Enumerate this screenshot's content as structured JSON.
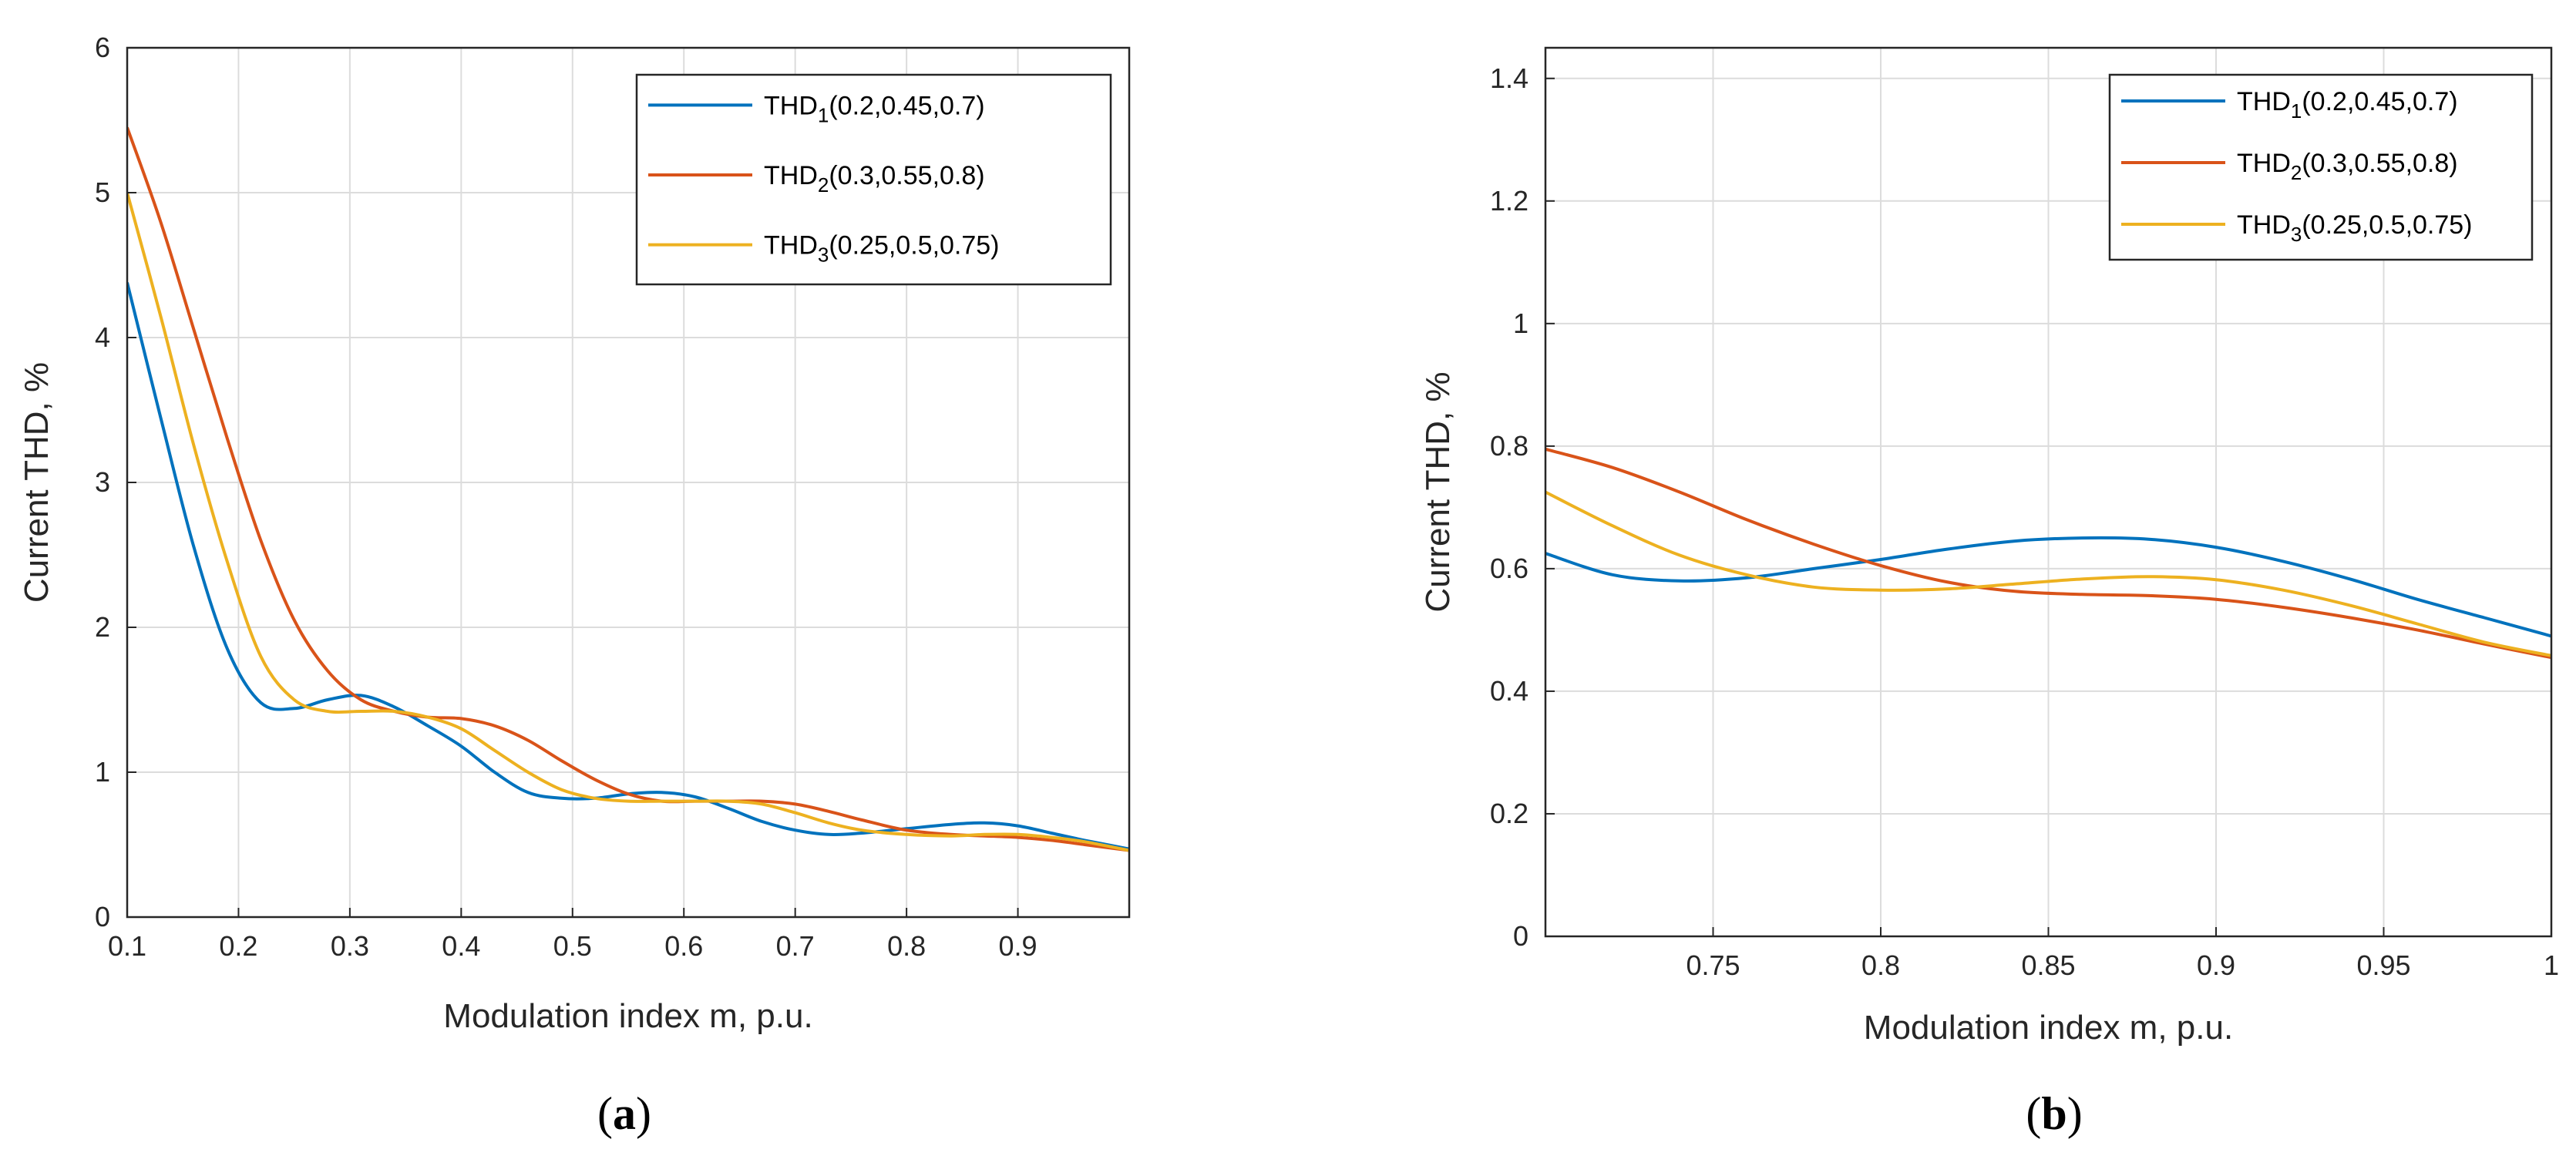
{
  "chart_data": [
    {
      "type": "line",
      "panel": "a",
      "caption": {
        "open": "(",
        "letter": "a",
        "close": ")"
      },
      "xlabel": "Modulation index m, p.u.",
      "ylabel": "Current THD, %",
      "xlim": [
        0.1,
        1.0
      ],
      "ylim": [
        0,
        6
      ],
      "xticks": [
        0.1,
        0.2,
        0.3,
        0.4,
        0.5,
        0.6,
        0.7,
        0.8,
        0.9
      ],
      "xtick_labels": [
        "0.1",
        "0.2",
        "0.3",
        "0.4",
        "0.5",
        "0.6",
        "0.7",
        "0.8",
        "0.9"
      ],
      "yticks": [
        0,
        1,
        2,
        3,
        4,
        5,
        6
      ],
      "ytick_labels": [
        "0",
        "1",
        "2",
        "3",
        "4",
        "5",
        "6"
      ],
      "grid": true,
      "legend_position": "top-right",
      "series": [
        {
          "name": "THD",
          "subscript": "1",
          "params": "(0.2,0.45,0.7)",
          "color": "#0072BD",
          "x": [
            0.1,
            0.13,
            0.16,
            0.19,
            0.22,
            0.25,
            0.28,
            0.31,
            0.34,
            0.37,
            0.4,
            0.43,
            0.46,
            0.49,
            0.52,
            0.55,
            0.58,
            0.61,
            0.64,
            0.67,
            0.7,
            0.73,
            0.76,
            0.8,
            0.84,
            0.87,
            0.9,
            0.93,
            0.96,
            1.0
          ],
          "y": [
            4.38,
            3.45,
            2.55,
            1.85,
            1.48,
            1.44,
            1.5,
            1.53,
            1.45,
            1.32,
            1.18,
            1.0,
            0.86,
            0.82,
            0.82,
            0.85,
            0.86,
            0.83,
            0.75,
            0.66,
            0.6,
            0.57,
            0.58,
            0.61,
            0.64,
            0.65,
            0.63,
            0.58,
            0.53,
            0.47
          ]
        },
        {
          "name": "THD",
          "subscript": "2",
          "params": "(0.3,0.55,0.8)",
          "color": "#D95319",
          "x": [
            0.1,
            0.13,
            0.16,
            0.19,
            0.22,
            0.25,
            0.28,
            0.31,
            0.34,
            0.37,
            0.4,
            0.43,
            0.46,
            0.49,
            0.52,
            0.55,
            0.58,
            0.61,
            0.64,
            0.67,
            0.7,
            0.73,
            0.76,
            0.8,
            0.84,
            0.87,
            0.9,
            0.93,
            0.96,
            1.0
          ],
          "y": [
            5.45,
            4.8,
            4.05,
            3.3,
            2.6,
            2.05,
            1.7,
            1.5,
            1.42,
            1.38,
            1.37,
            1.32,
            1.22,
            1.08,
            0.95,
            0.85,
            0.8,
            0.8,
            0.8,
            0.8,
            0.78,
            0.73,
            0.67,
            0.6,
            0.57,
            0.56,
            0.55,
            0.53,
            0.5,
            0.46
          ]
        },
        {
          "name": "THD",
          "subscript": "3",
          "params": "(0.25,0.5,0.75)",
          "color": "#EDB120",
          "x": [
            0.1,
            0.13,
            0.16,
            0.19,
            0.22,
            0.25,
            0.28,
            0.31,
            0.34,
            0.37,
            0.4,
            0.43,
            0.46,
            0.49,
            0.52,
            0.55,
            0.58,
            0.61,
            0.64,
            0.67,
            0.7,
            0.73,
            0.76,
            0.8,
            0.84,
            0.87,
            0.9,
            0.93,
            0.96,
            1.0
          ],
          "y": [
            5.0,
            4.15,
            3.25,
            2.45,
            1.8,
            1.5,
            1.42,
            1.42,
            1.42,
            1.38,
            1.3,
            1.15,
            1.0,
            0.88,
            0.82,
            0.8,
            0.8,
            0.8,
            0.8,
            0.78,
            0.72,
            0.65,
            0.6,
            0.57,
            0.56,
            0.57,
            0.57,
            0.55,
            0.52,
            0.46
          ]
        }
      ]
    },
    {
      "type": "line",
      "panel": "b",
      "caption": {
        "open": "(",
        "letter": "b",
        "close": ")"
      },
      "xlabel": "Modulation index m, p.u.",
      "ylabel": "Current THD, %",
      "xlim": [
        0.7,
        1.0
      ],
      "ylim": [
        0,
        1.45
      ],
      "xticks": [
        0.75,
        0.8,
        0.85,
        0.9,
        0.95,
        1.0
      ],
      "xtick_labels": [
        "0.75",
        "0.8",
        "0.85",
        "0.9",
        "0.95",
        "1"
      ],
      "yticks": [
        0,
        0.2,
        0.4,
        0.6,
        0.8,
        1.0,
        1.2,
        1.4
      ],
      "ytick_labels": [
        "0",
        "0.2",
        "0.4",
        "0.6",
        "0.8",
        "1",
        "1.2",
        "1.4"
      ],
      "grid": true,
      "legend_position": "top-right",
      "series": [
        {
          "name": "THD",
          "subscript": "1",
          "params": "(0.2,0.45,0.7)",
          "color": "#0072BD",
          "x": [
            0.7,
            0.72,
            0.74,
            0.76,
            0.78,
            0.8,
            0.82,
            0.84,
            0.86,
            0.88,
            0.9,
            0.92,
            0.94,
            0.96,
            0.98,
            1.0
          ],
          "y": [
            0.625,
            0.59,
            0.58,
            0.585,
            0.6,
            0.615,
            0.632,
            0.645,
            0.65,
            0.648,
            0.635,
            0.612,
            0.583,
            0.55,
            0.52,
            0.49
          ]
        },
        {
          "name": "THD",
          "subscript": "2",
          "params": "(0.3,0.55,0.8)",
          "color": "#D95319",
          "x": [
            0.7,
            0.72,
            0.74,
            0.76,
            0.78,
            0.8,
            0.82,
            0.84,
            0.86,
            0.88,
            0.9,
            0.92,
            0.94,
            0.96,
            0.98,
            1.0
          ],
          "y": [
            0.795,
            0.765,
            0.725,
            0.68,
            0.64,
            0.605,
            0.578,
            0.563,
            0.558,
            0.556,
            0.55,
            0.537,
            0.52,
            0.5,
            0.477,
            0.455
          ]
        },
        {
          "name": "THD",
          "subscript": "3",
          "params": "(0.25,0.5,0.75)",
          "color": "#EDB120",
          "x": [
            0.7,
            0.72,
            0.74,
            0.76,
            0.78,
            0.8,
            0.82,
            0.84,
            0.86,
            0.88,
            0.9,
            0.92,
            0.94,
            0.96,
            0.98,
            1.0
          ],
          "y": [
            0.725,
            0.67,
            0.622,
            0.59,
            0.57,
            0.565,
            0.567,
            0.575,
            0.583,
            0.587,
            0.582,
            0.565,
            0.54,
            0.51,
            0.48,
            0.458
          ]
        }
      ]
    }
  ]
}
